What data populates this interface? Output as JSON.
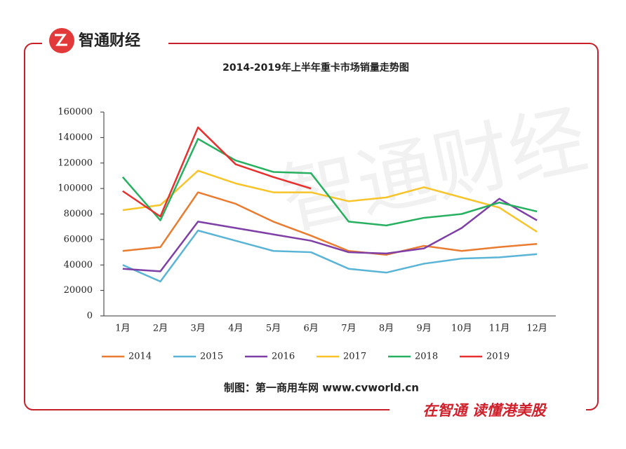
{
  "brand": "智通财经",
  "slogan": "在智通  读懂港美股",
  "chart_data": {
    "type": "line",
    "title": "2014-2019年上半年重卡市场销量走势图",
    "source": "制图：第一商用车网 www.cvworld.cn",
    "categories": [
      "1月",
      "2月",
      "3月",
      "4月",
      "5月",
      "6月",
      "7月",
      "8月",
      "9月",
      "10月",
      "11月",
      "12月"
    ],
    "series": [
      {
        "name": "2014",
        "color": "#e97c30",
        "values": [
          51000,
          54000,
          97000,
          88000,
          74000,
          63000,
          51000,
          48000,
          55000,
          51000,
          54000,
          56500
        ]
      },
      {
        "name": "2015",
        "color": "#5ab4d6",
        "values": [
          40000,
          27000,
          67000,
          59000,
          51000,
          50000,
          37000,
          34000,
          41000,
          45000,
          46000,
          48500
        ]
      },
      {
        "name": "2016",
        "color": "#7e3fa6",
        "values": [
          37000,
          35000,
          74000,
          69000,
          64000,
          59000,
          50000,
          49000,
          53000,
          69000,
          92000,
          75000
        ]
      },
      {
        "name": "2017",
        "color": "#f8c42a",
        "values": [
          83000,
          87000,
          114000,
          104000,
          97000,
          97000,
          90000,
          93000,
          101000,
          93000,
          85000,
          66000
        ]
      },
      {
        "name": "2018",
        "color": "#27b060",
        "values": [
          109000,
          75000,
          139000,
          122000,
          113000,
          112000,
          74000,
          71000,
          77000,
          80000,
          89000,
          82000
        ]
      },
      {
        "name": "2019",
        "color": "#e8312f",
        "values": [
          98000,
          78000,
          148000,
          119000,
          109000,
          100000,
          null,
          null,
          null,
          null,
          null,
          null
        ]
      }
    ],
    "ylim": [
      0,
      160000
    ],
    "yticks": [
      0,
      20000,
      40000,
      60000,
      80000,
      100000,
      120000,
      140000,
      160000
    ],
    "grid": false,
    "legend": "bottom"
  }
}
